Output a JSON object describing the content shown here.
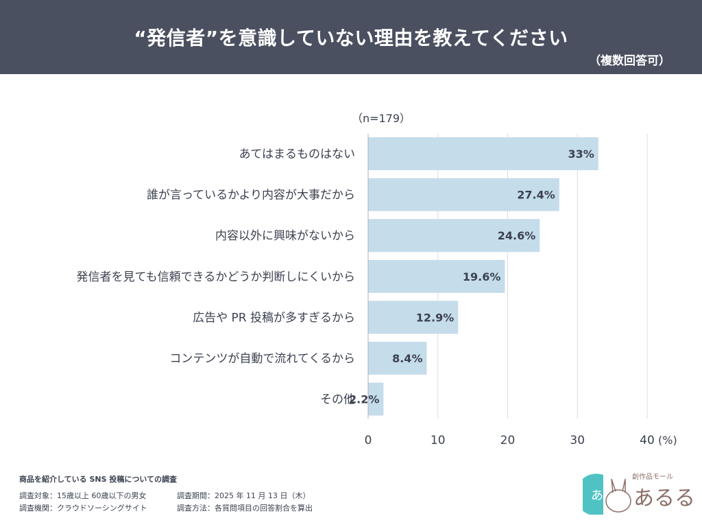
{
  "header": {
    "title": "“発信者”を意識していない理由を教えてください",
    "subtitle": "（複数回答可）"
  },
  "chart_data": {
    "type": "bar",
    "orientation": "horizontal",
    "sample_note": "（n=179）",
    "categories": [
      "あてはまるものはない",
      "誰が言っているかより内容が大事だから",
      "内容以外に興味がないから",
      "発信者を見ても信頼できるかどうか判断しにくいから",
      "広告や PR 投稿が多すぎるから",
      "コンテンツが自動で流れてくるから",
      "その他"
    ],
    "values": [
      33,
      27.4,
      24.6,
      19.6,
      12.9,
      8.4,
      2.2
    ],
    "data_labels": [
      "33%",
      "27.4%",
      "24.6%",
      "19.6%",
      "12.9%",
      "8.4%",
      "2.2%"
    ],
    "xlim": [
      0,
      40
    ],
    "ticks": [
      "0",
      "10",
      "20",
      "30",
      "40"
    ],
    "unit_label": "(%)",
    "grid": true,
    "bar_color": "#c5dceb"
  },
  "footer": {
    "survey_title": "商品を紹介している SNS 投稿についての調査",
    "target": "調査対象：15歳以上 60歳以下の男女",
    "period": "調査期間：2025 年 11 月 13 日（木）",
    "agency": "調査機関：クラウドソーシングサイト",
    "method": "調査方法：各質問項目の回答割合を算出"
  },
  "logo": {
    "text": "創作品モール あるる"
  }
}
